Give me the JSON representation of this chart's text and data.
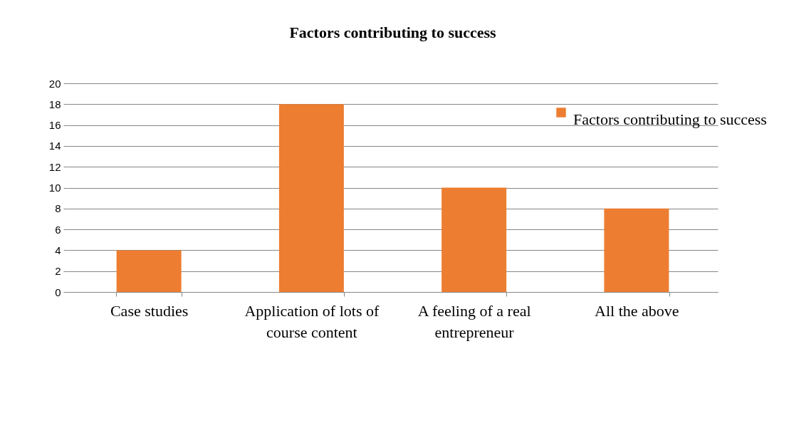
{
  "chart_data": {
    "type": "bar",
    "title": "Factors contributing to success",
    "categories": [
      "Case studies",
      "Application of lots of course content",
      "A feeling of a real entrepreneur",
      "All the above"
    ],
    "series": [
      {
        "name": "Factors contributing to success",
        "color": "#ed7d31",
        "values": [
          4,
          18,
          10,
          8
        ]
      }
    ],
    "ylim": [
      0,
      20
    ],
    "yticks": [
      0,
      2,
      4,
      6,
      8,
      10,
      12,
      14,
      16,
      18,
      20
    ],
    "grid": "y",
    "legend": "top right"
  }
}
